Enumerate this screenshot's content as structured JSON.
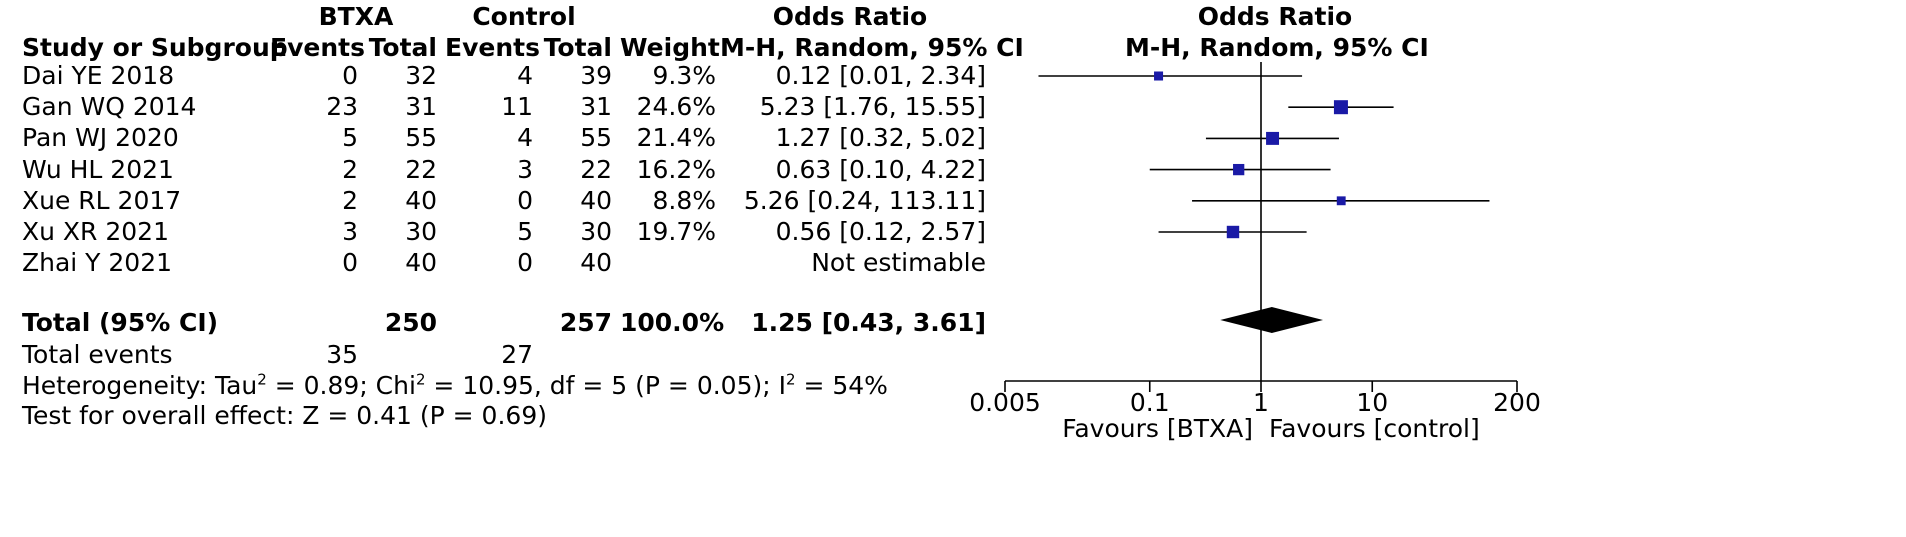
{
  "header": {
    "group1": "BTXA",
    "group2": "Control",
    "or_group": "Odds Ratio",
    "study_col": "Study or Subgroup",
    "events1": "Events",
    "total1": "Total",
    "events2": "Events",
    "total2": "Total",
    "weight": "Weight",
    "or_method": "M-H, Random, 95% CI",
    "plot_title": "Odds Ratio",
    "plot_method": "M-H, Random, 95% CI"
  },
  "studies": [
    {
      "name": "Dai YE 2018",
      "e1": "0",
      "n1": "32",
      "e2": "4",
      "n2": "39",
      "weight": "9.3%",
      "ci_text": "0.12 [0.01, 2.34]"
    },
    {
      "name": "Gan WQ 2014",
      "e1": "23",
      "n1": "31",
      "e2": "11",
      "n2": "31",
      "weight": "24.6%",
      "ci_text": "5.23 [1.76, 15.55]"
    },
    {
      "name": "Pan WJ 2020",
      "e1": "5",
      "n1": "55",
      "e2": "4",
      "n2": "55",
      "weight": "21.4%",
      "ci_text": "1.27 [0.32, 5.02]"
    },
    {
      "name": "Wu HL 2021",
      "e1": "2",
      "n1": "22",
      "e2": "3",
      "n2": "22",
      "weight": "16.2%",
      "ci_text": "0.63 [0.10, 4.22]"
    },
    {
      "name": "Xue RL 2017",
      "e1": "2",
      "n1": "40",
      "e2": "0",
      "n2": "40",
      "weight": "8.8%",
      "ci_text": "5.26 [0.24, 113.11]"
    },
    {
      "name": "Xu XR 2021",
      "e1": "3",
      "n1": "30",
      "e2": "5",
      "n2": "30",
      "weight": "19.7%",
      "ci_text": "0.56 [0.12, 2.57]"
    },
    {
      "name": "Zhai Y 2021",
      "e1": "0",
      "n1": "40",
      "e2": "0",
      "n2": "40",
      "weight": "",
      "ci_text": "Not estimable"
    }
  ],
  "total": {
    "label": "Total (95% CI)",
    "n1": "250",
    "n2": "257",
    "weight": "100.0%",
    "ci_text": "1.25 [0.43, 3.61]"
  },
  "total_events": {
    "label": "Total events",
    "e1": "35",
    "e2": "27"
  },
  "heterogeneity": {
    "prefix": "Heterogeneity: Tau",
    "tau_value": " = 0.89; Chi",
    "chi_value": " = 10.95, df = 5 (P = 0.05); I",
    "i_value": " = 54%",
    "sup": "2"
  },
  "overall_effect": "Test for overall effect: Z = 0.41 (P = 0.69)",
  "axis": {
    "ticks": [
      "0.005",
      "0.1",
      "1",
      "10",
      "200"
    ],
    "favours_left": "Favours [BTXA]",
    "favours_right": "Favours [control]"
  },
  "chart_data": {
    "type": "forest",
    "scale": "log",
    "xlim": [
      0.005,
      200
    ],
    "null_value": 1,
    "marker_color": "#1a1aa6",
    "studies": [
      {
        "name": "Dai YE 2018",
        "or": 0.12,
        "lower": 0.01,
        "upper": 2.34,
        "weight": 9.3
      },
      {
        "name": "Gan WQ 2014",
        "or": 5.23,
        "lower": 1.76,
        "upper": 15.55,
        "weight": 24.6
      },
      {
        "name": "Pan WJ 2020",
        "or": 1.27,
        "lower": 0.32,
        "upper": 5.02,
        "weight": 21.4
      },
      {
        "name": "Wu HL 2021",
        "or": 0.63,
        "lower": 0.1,
        "upper": 4.22,
        "weight": 16.2
      },
      {
        "name": "Xue RL 2017",
        "or": 5.26,
        "lower": 0.24,
        "upper": 113.11,
        "weight": 8.8
      },
      {
        "name": "Xu XR 2021",
        "or": 0.56,
        "lower": 0.12,
        "upper": 2.57,
        "weight": 19.7
      },
      {
        "name": "Zhai Y 2021",
        "or": null,
        "lower": null,
        "upper": null,
        "weight": null
      }
    ],
    "pooled": {
      "or": 1.25,
      "lower": 0.43,
      "upper": 3.61
    }
  }
}
